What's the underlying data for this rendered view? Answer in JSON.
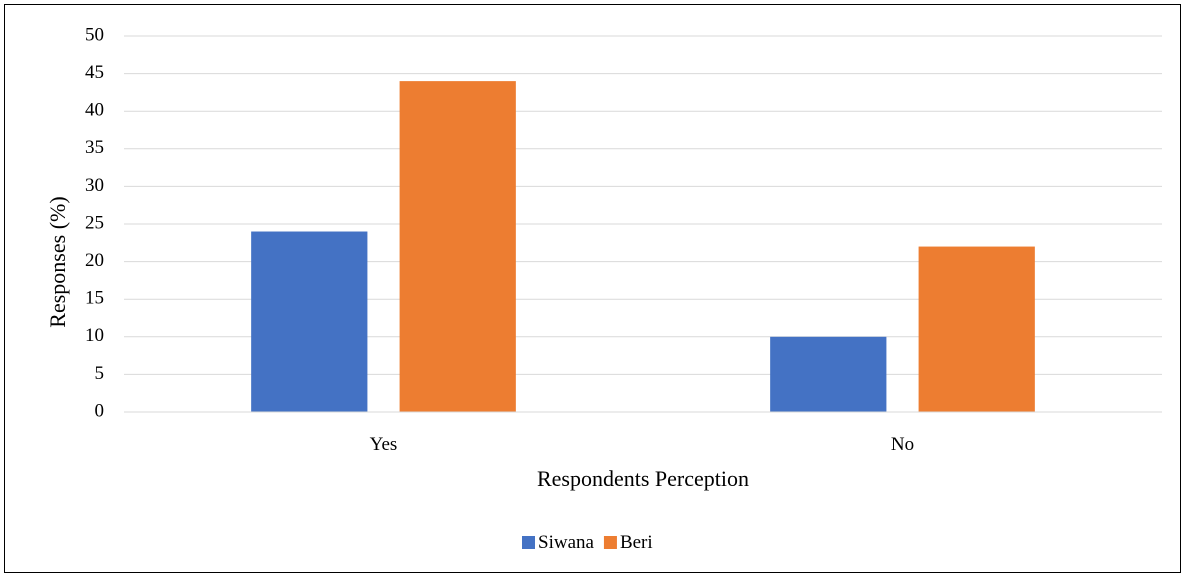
{
  "chart_data": {
    "type": "bar",
    "title": "",
    "xlabel": "Respondents Perception",
    "ylabel": "Responses (%)",
    "ylim": [
      0,
      50
    ],
    "ytick_step": 5,
    "grid": true,
    "legend_placement": "bottom-center",
    "categories": [
      "Yes",
      "No"
    ],
    "series": [
      {
        "name": "Siwana",
        "color": "#4472C4",
        "values": [
          24,
          10
        ]
      },
      {
        "name": "Beri",
        "color": "#ED7D31",
        "values": [
          44,
          22
        ]
      }
    ]
  }
}
